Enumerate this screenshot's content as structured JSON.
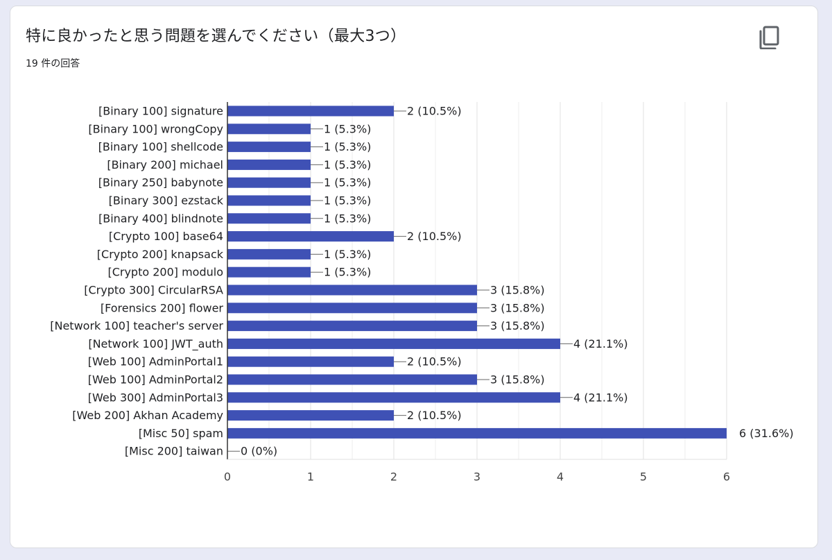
{
  "header": {
    "title": "特に良かったと思う問題を選んでください（最大3つ）",
    "subtitle": "19 件の回答"
  },
  "icons": {
    "copy": "copy-icon"
  },
  "colors": {
    "bar": "#3f51b5",
    "grid": "#e0e0e0",
    "axis": "#333333"
  },
  "chart_data": {
    "type": "bar",
    "orientation": "horizontal",
    "title": "",
    "xlabel": "",
    "ylabel": "",
    "xlim": [
      0,
      6
    ],
    "x_ticks": [
      "0",
      "1",
      "2",
      "3",
      "4",
      "5",
      "6"
    ],
    "grid": true,
    "categories": [
      "[Binary 100] signature",
      "[Binary 100] wrongCopy",
      "[Binary 100] shellcode",
      "[Binary 200] michael",
      "[Binary 250] babynote",
      "[Binary 300] ezstack",
      "[Binary 400] blindnote",
      "[Crypto 100] base64",
      "[Crypto 200] knapsack",
      "[Crypto 200] modulo",
      "[Crypto 300] CircularRSA",
      "[Forensics 200] flower",
      "[Network 100] teacher's server",
      "[Network 100] JWT_auth",
      "[Web 100] AdminPortal1",
      "[Web 100] AdminPortal2",
      "[Web 300] AdminPortal3",
      "[Web 200] Akhan Academy",
      "[Misc 50] spam",
      "[Misc 200] taiwan"
    ],
    "values": [
      2,
      1,
      1,
      1,
      1,
      1,
      1,
      2,
      1,
      1,
      3,
      3,
      3,
      4,
      2,
      3,
      4,
      2,
      6,
      0
    ],
    "data_labels": [
      "2 (10.5%)",
      "1 (5.3%)",
      "1 (5.3%)",
      "1 (5.3%)",
      "1 (5.3%)",
      "1 (5.3%)",
      "1 (5.3%)",
      "2 (10.5%)",
      "1 (5.3%)",
      "1 (5.3%)",
      "3 (15.8%)",
      "3 (15.8%)",
      "3 (15.8%)",
      "4 (21.1%)",
      "2 (10.5%)",
      "3 (15.8%)",
      "4 (21.1%)",
      "2 (10.5%)",
      "6 (31.6%)",
      "0 (0%)"
    ]
  }
}
